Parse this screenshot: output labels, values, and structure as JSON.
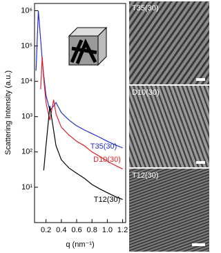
{
  "chart_data": {
    "type": "line",
    "y_label": "Scattering Intensity (a.u.)",
    "x_label": "q (nm⁻¹)",
    "log_y": true,
    "x": [
      0.07,
      0.1,
      0.13,
      0.15,
      0.17,
      0.2,
      0.25,
      0.3,
      0.33,
      0.4,
      0.5,
      0.6,
      0.7,
      0.8,
      0.9,
      1.0,
      1.1,
      1.2
    ],
    "series": [
      {
        "name": "T35(30)",
        "color": "#1f2fd0",
        "values": [
          20000,
          1000000,
          150000,
          40000,
          15000,
          4000,
          1500,
          2000,
          2500,
          1300,
          800,
          550,
          420,
          330,
          260,
          200,
          160,
          130
        ]
      },
      {
        "name": "D10(30)",
        "color": "#e0202a",
        "values": [
          null,
          null,
          6000,
          50000,
          12000,
          2500,
          800,
          3000,
          1200,
          500,
          300,
          200,
          150,
          100,
          75,
          55,
          42,
          33
        ]
      },
      {
        "name": "T12(30)",
        "color": "#000000",
        "values": [
          null,
          null,
          null,
          null,
          30,
          150,
          2000,
          400,
          150,
          60,
          35,
          25,
          18,
          12,
          9,
          7,
          5.5,
          4.5
        ]
      }
    ],
    "xlim": [
      0.05,
      1.24
    ],
    "ylim": [
      1,
      1600000
    ],
    "xticks": [
      0.2,
      0.4,
      0.6,
      0.8,
      {
        "value": 1,
        "label": "1.0"
      },
      1.2
    ],
    "yticks": [
      {
        "value": 10,
        "label": "10¹"
      },
      {
        "value": 100,
        "label": "10²"
      },
      {
        "value": 1000,
        "label": "10³"
      },
      {
        "value": 10000,
        "label": "10⁴"
      },
      {
        "value": 100000,
        "label": "10⁵"
      },
      {
        "value": 1000000,
        "label": "10⁶"
      }
    ]
  },
  "panels": [
    {
      "label": "T35(30)"
    },
    {
      "label": "D10(30)"
    },
    {
      "label": "T12(30)"
    }
  ]
}
